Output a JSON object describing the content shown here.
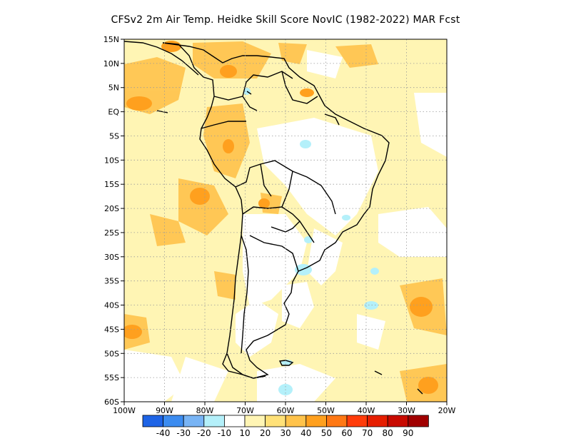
{
  "title": "CFSv2  2m Air Temp. Heidke Skill Score NovIC (1982-2022) MAR Fcst",
  "y_ticks": [
    "15N",
    "10N",
    "5N",
    "EQ",
    "5S",
    "10S",
    "15S",
    "20S",
    "25S",
    "30S",
    "35S",
    "40S",
    "45S",
    "50S",
    "55S",
    "60S"
  ],
  "x_ticks": [
    "100W",
    "90W",
    "80W",
    "70W",
    "60W",
    "50W",
    "40W",
    "30W",
    "20W"
  ],
  "colorbar": {
    "colors": [
      "#1e64e6",
      "#3c8cf0",
      "#78b4f5",
      "#b4f0fa",
      "#ffffff",
      "#fff5b4",
      "#ffe178",
      "#ffc34b",
      "#ffa01e",
      "#ff7814",
      "#ff3c0a",
      "#e61e00",
      "#c80a00",
      "#a00000"
    ],
    "labels": [
      "-40",
      "-30",
      "-20",
      "-10",
      "10",
      "20",
      "30",
      "40",
      "50",
      "60",
      "70",
      "80",
      "90"
    ]
  }
}
